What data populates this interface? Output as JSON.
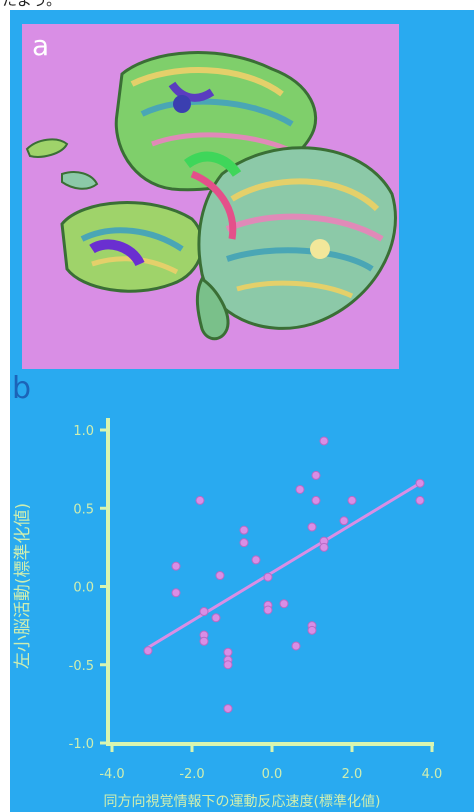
{
  "header": {
    "text": "たよう。"
  },
  "panel_a": {
    "label": "a"
  },
  "panel_b": {
    "label": "b"
  },
  "colors": {
    "figure_bg": "#29aaf0",
    "panel_a_bg": "#d98ee5",
    "axis": "#d9f5b0",
    "points": "#d98ee5",
    "fit_line": "#d98ee5"
  },
  "chart_data": {
    "type": "scatter",
    "ylabel": "左小脳活動(標準化値)",
    "xlabel": "同方向視覚情報下の運動反応速度(標準化値)",
    "xlim": [
      -4.0,
      4.0
    ],
    "ylim": [
      -1.0,
      1.0
    ],
    "x_ticks": [
      "-4.0",
      "-2.0",
      "0.0",
      "2.0",
      "4.0"
    ],
    "y_ticks": [
      "1.0",
      "0.5",
      "0.0",
      "-0.5",
      "-1.0"
    ],
    "grid": false,
    "points": [
      {
        "x": -3.1,
        "y": -0.41
      },
      {
        "x": -2.4,
        "y": 0.13
      },
      {
        "x": -2.4,
        "y": -0.04
      },
      {
        "x": -1.8,
        "y": 0.55
      },
      {
        "x": -1.7,
        "y": -0.16
      },
      {
        "x": -1.7,
        "y": -0.31
      },
      {
        "x": -1.7,
        "y": -0.35
      },
      {
        "x": -1.4,
        "y": -0.2
      },
      {
        "x": -1.3,
        "y": 0.07
      },
      {
        "x": -1.1,
        "y": -0.42
      },
      {
        "x": -1.1,
        "y": -0.47
      },
      {
        "x": -1.1,
        "y": -0.5
      },
      {
        "x": -1.1,
        "y": -0.78
      },
      {
        "x": -0.7,
        "y": 0.36
      },
      {
        "x": -0.7,
        "y": 0.28
      },
      {
        "x": -0.4,
        "y": 0.17
      },
      {
        "x": -0.1,
        "y": 0.06
      },
      {
        "x": -0.1,
        "y": -0.12
      },
      {
        "x": -0.1,
        "y": -0.15
      },
      {
        "x": 0.3,
        "y": -0.11
      },
      {
        "x": 0.6,
        "y": -0.38
      },
      {
        "x": 0.7,
        "y": 0.62
      },
      {
        "x": 1.0,
        "y": 0.38
      },
      {
        "x": 1.0,
        "y": -0.25
      },
      {
        "x": 1.0,
        "y": -0.28
      },
      {
        "x": 1.1,
        "y": 0.71
      },
      {
        "x": 1.1,
        "y": 0.55
      },
      {
        "x": 1.3,
        "y": 0.29
      },
      {
        "x": 1.3,
        "y": 0.25
      },
      {
        "x": 1.3,
        "y": 0.93
      },
      {
        "x": 1.8,
        "y": 0.42
      },
      {
        "x": 2.0,
        "y": 0.55
      },
      {
        "x": 3.7,
        "y": 0.66
      },
      {
        "x": 3.7,
        "y": 0.55
      }
    ],
    "fit_line": {
      "x": [
        -3.1,
        3.7
      ],
      "y": [
        -0.39,
        0.66
      ]
    }
  }
}
